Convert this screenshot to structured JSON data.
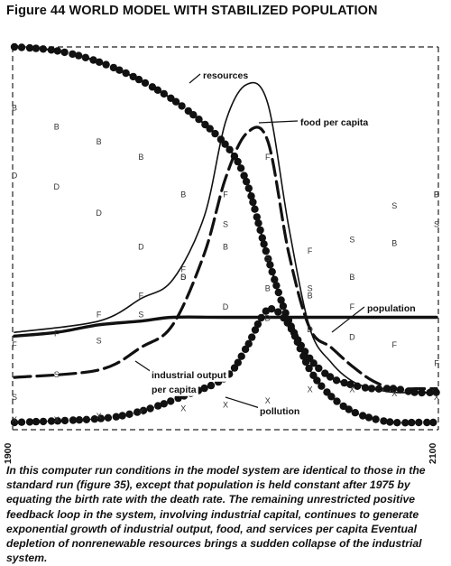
{
  "figure": {
    "title": "Figure 44 WORLD MODEL WITH STABILIZED POPULATION",
    "caption": "In this computer run conditions in the model system are identical to those in the standard run (figure 35), except that population is held constant after 1975 by equating the birth rate with the death rate. The remaining unrestricted positive feedback loop in the system, involving industrial capital, continues to generate exponential growth of industrial output, food, and services per capita Eventual depletion of nonrenewable resources brings a sudden collapse of the industrial system."
  },
  "chart_data": {
    "type": "line",
    "x_labels": [
      "1900",
      "2100"
    ],
    "xlim": [
      1900,
      2100
    ],
    "ylim": [
      0,
      1
    ],
    "grid": false,
    "y_scale": "normalized, unlabeled",
    "series": [
      {
        "name": "resources",
        "style": "dashed line with large dots",
        "x": [
          1900,
          1920,
          1940,
          1960,
          1980,
          2000,
          2010,
          2020,
          2030,
          2040,
          2050,
          2060,
          2070,
          2080,
          2090,
          2100
        ],
        "y": [
          1.0,
          0.99,
          0.96,
          0.91,
          0.84,
          0.74,
          0.64,
          0.44,
          0.27,
          0.17,
          0.12,
          0.1,
          0.09,
          0.09,
          0.08,
          0.08
        ]
      },
      {
        "name": "food per capita",
        "style": "thin solid line",
        "x": [
          1900,
          1940,
          1960,
          1975,
          1990,
          2000,
          2010,
          2020,
          2030,
          2040,
          2050,
          2060,
          2070,
          2080,
          2090,
          2100
        ],
        "y": [
          0.24,
          0.27,
          0.33,
          0.38,
          0.55,
          0.8,
          0.9,
          0.85,
          0.52,
          0.25,
          0.16,
          0.11,
          0.09,
          0.08,
          0.08,
          0.08
        ]
      },
      {
        "name": "population",
        "style": "thick solid line",
        "x": [
          1900,
          1920,
          1940,
          1960,
          1975,
          2000,
          2050,
          2100
        ],
        "y": [
          0.23,
          0.24,
          0.26,
          0.27,
          0.28,
          0.28,
          0.28,
          0.28
        ]
      },
      {
        "name": "industrial output per capita",
        "style": "thick long-dashed line",
        "x": [
          1900,
          1940,
          1960,
          1975,
          1990,
          2000,
          2010,
          2020,
          2030,
          2040,
          2050,
          2060,
          2070,
          2080,
          2090,
          2100
        ],
        "y": [
          0.12,
          0.14,
          0.2,
          0.26,
          0.45,
          0.65,
          0.77,
          0.75,
          0.45,
          0.25,
          0.2,
          0.15,
          0.11,
          0.09,
          0.09,
          0.09
        ]
      },
      {
        "name": "pollution",
        "style": "dotted with large dots",
        "x": [
          1900,
          1940,
          1960,
          1980,
          2000,
          2010,
          2020,
          2030,
          2040,
          2050,
          2060,
          2070,
          2080,
          2090,
          2100
        ],
        "y": [
          0.0,
          0.01,
          0.03,
          0.07,
          0.12,
          0.2,
          0.3,
          0.26,
          0.14,
          0.07,
          0.03,
          0.01,
          0.0,
          0.0,
          0.0
        ]
      },
      {
        "name": "B",
        "style": "letter marker",
        "x": [
          1900,
          1920,
          1940,
          1960,
          1980,
          2000,
          2020,
          2040,
          2060,
          2080,
          2100
        ],
        "y": [
          0.83,
          0.78,
          0.74,
          0.7,
          0.6,
          0.46,
          0.35,
          0.33,
          0.38,
          0.47,
          0.6
        ]
      },
      {
        "name": "D",
        "style": "letter marker",
        "x": [
          1900,
          1920,
          1940,
          1960,
          1980,
          2000,
          2020,
          2040,
          2060,
          2100
        ],
        "y": [
          0.65,
          0.62,
          0.55,
          0.46,
          0.38,
          0.3,
          0.27,
          0.24,
          0.22,
          0.6
        ]
      },
      {
        "name": "S",
        "style": "letter marker",
        "x": [
          1900,
          1920,
          1940,
          1960,
          1980,
          2000,
          2020,
          2040,
          2060,
          2080,
          2100
        ],
        "y": [
          0.06,
          0.12,
          0.21,
          0.28,
          0.38,
          0.52,
          0.43,
          0.35,
          0.48,
          0.57,
          0.52
        ]
      },
      {
        "name": "F",
        "style": "letter marker",
        "x": [
          1900,
          1920,
          1940,
          1960,
          1980,
          2000,
          2020,
          2040,
          2060,
          2080,
          2100
        ],
        "y": [
          0.2,
          0.23,
          0.28,
          0.33,
          0.4,
          0.6,
          0.7,
          0.45,
          0.3,
          0.2,
          0.15
        ]
      },
      {
        "name": "X",
        "style": "letter marker",
        "x": [
          1900,
          1920,
          1940,
          1960,
          1980,
          2000,
          2020,
          2040,
          2060,
          2080,
          2100
        ],
        "y": [
          0.0,
          0.0,
          0.01,
          0.02,
          0.03,
          0.04,
          0.05,
          0.08,
          0.08,
          0.07,
          0.06
        ]
      }
    ],
    "annotations": [
      {
        "text": "resources",
        "series": "resources"
      },
      {
        "text": "food per capita",
        "series": "food per capita"
      },
      {
        "text": "population",
        "series": "population"
      },
      {
        "text": "industrial output",
        "series": "industrial output per capita"
      },
      {
        "text": "per capita",
        "series": "industrial output per capita"
      },
      {
        "text": "pollution",
        "series": "pollution"
      }
    ]
  }
}
